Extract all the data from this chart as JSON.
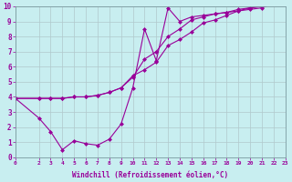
{
  "xlabel": "Windchill (Refroidissement éolien,°C)",
  "bg_color": "#c8eef0",
  "line_color": "#990099",
  "grid_color": "#b0c8cc",
  "xlim": [
    0,
    23
  ],
  "ylim": [
    0,
    10
  ],
  "xticks": [
    0,
    2,
    3,
    4,
    5,
    6,
    7,
    8,
    9,
    10,
    11,
    12,
    13,
    14,
    15,
    16,
    17,
    18,
    19,
    20,
    21,
    22,
    23
  ],
  "yticks": [
    0,
    1,
    2,
    3,
    4,
    5,
    6,
    7,
    8,
    9,
    10
  ],
  "line1_x": [
    0,
    2,
    3,
    4,
    5,
    6,
    7,
    8,
    9,
    10,
    11,
    12,
    13,
    14,
    15,
    16,
    17,
    18,
    19,
    20,
    21,
    22,
    23
  ],
  "line1_y": [
    3.9,
    3.9,
    3.9,
    3.9,
    4.0,
    4.0,
    4.1,
    4.3,
    4.6,
    5.3,
    6.5,
    7.0,
    8.0,
    8.5,
    9.1,
    9.3,
    9.5,
    9.6,
    9.8,
    9.9,
    10.0,
    10.2,
    10.4
  ],
  "line2_x": [
    0,
    2,
    3,
    4,
    5,
    6,
    7,
    8,
    9,
    10,
    11,
    12,
    13,
    14,
    15,
    16,
    17,
    18,
    19,
    20,
    21,
    22,
    23
  ],
  "line2_y": [
    3.9,
    2.6,
    1.7,
    0.5,
    1.1,
    0.9,
    0.8,
    1.2,
    2.2,
    4.6,
    8.5,
    6.4,
    9.9,
    9.0,
    9.3,
    9.4,
    9.5,
    9.6,
    9.7,
    9.8,
    9.9,
    10.2,
    10.5
  ],
  "line3_x": [
    0,
    2,
    3,
    4,
    5,
    6,
    7,
    8,
    9,
    10,
    11,
    12,
    13,
    14,
    15,
    16,
    17,
    18,
    19,
    20,
    21,
    22,
    23
  ],
  "line3_y": [
    3.9,
    3.9,
    3.9,
    3.9,
    4.0,
    4.0,
    4.1,
    4.3,
    4.6,
    5.4,
    5.8,
    6.3,
    7.4,
    7.8,
    8.3,
    8.9,
    9.1,
    9.4,
    9.7,
    9.9,
    10.0,
    10.2,
    10.4
  ]
}
